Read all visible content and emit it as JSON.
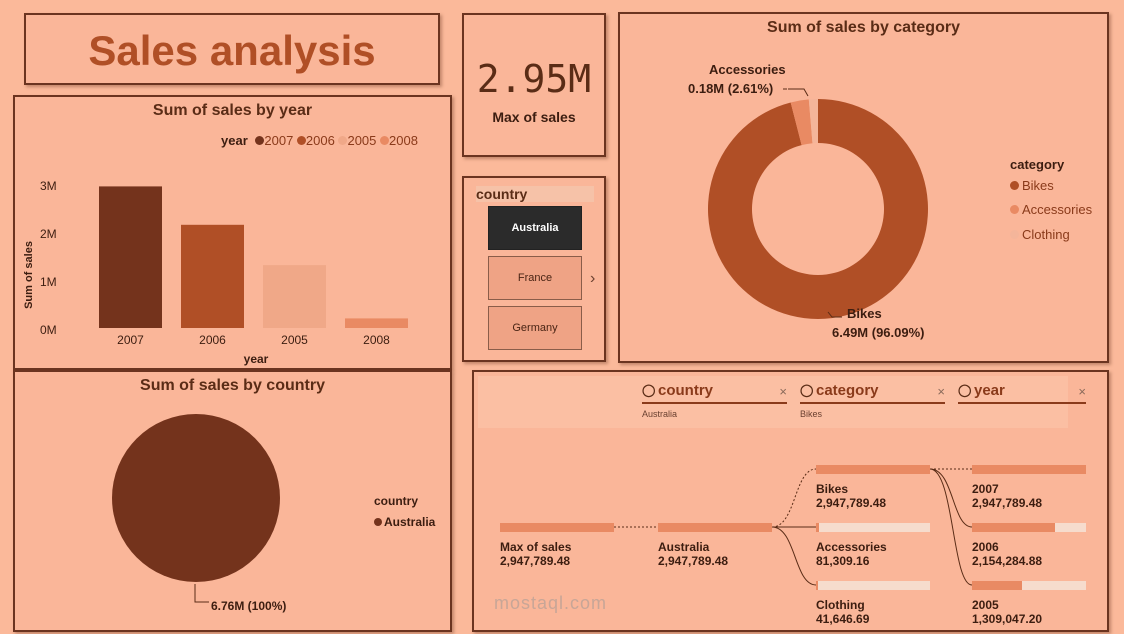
{
  "title": "Sales analysis",
  "kpi": {
    "value": "2.95M",
    "label": "Max of sales"
  },
  "year_chart": {
    "title": "Sum of sales by year",
    "legend_title": "year",
    "legend": [
      "2007",
      "2006",
      "2005",
      "2008"
    ],
    "ylabel": "Sum of sales",
    "xlabel": "year",
    "yticks": [
      "3M",
      "2M",
      "1M",
      "0M"
    ]
  },
  "category_chart": {
    "title": "Sum of sales by category",
    "legend_title": "category",
    "legend": [
      "Bikes",
      "Accessories",
      "Clothing"
    ],
    "label_accessories_name": "Accessories",
    "label_accessories_value": "0.18M (2.61%)",
    "label_bikes_name": "Bikes",
    "label_bikes_value": "6.49M (96.09%)"
  },
  "country_chart": {
    "title": "Sum of sales by country",
    "legend_title": "country",
    "legend": [
      "Australia"
    ],
    "label_value": "6.76M (100%)"
  },
  "slicer": {
    "title": "country",
    "items": [
      "Australia",
      "France",
      "Germany"
    ],
    "selected": "Australia"
  },
  "decomp": {
    "headers": [
      {
        "label": "country",
        "sub": "Australia"
      },
      {
        "label": "category",
        "sub": "Bikes"
      },
      {
        "label": "year",
        "sub": ""
      }
    ],
    "root": {
      "label": "Max of sales",
      "value": "2,947,789.48"
    },
    "level1": [
      {
        "label": "Australia",
        "value": "2,947,789.48"
      }
    ],
    "level2": [
      {
        "label": "Bikes",
        "value": "2,947,789.48"
      },
      {
        "label": "Accessories",
        "value": "81,309.16"
      },
      {
        "label": "Clothing",
        "value": "41,646.69"
      }
    ],
    "level3": [
      {
        "label": "2007",
        "value": "2,947,789.48"
      },
      {
        "label": "2006",
        "value": "2,154,284.88"
      },
      {
        "label": "2005",
        "value": "1,309,047.20"
      }
    ]
  },
  "watermark": "mostaql.com",
  "colors": {
    "background": "#fbb99a",
    "dark_brown": "#74331c",
    "rust": "#b04f26",
    "light_salmon": "#f0a888",
    "orange": "#e98a63",
    "pale": "#f6dccd"
  },
  "chart_data": [
    {
      "type": "bar",
      "title": "Sum of sales by year",
      "xlabel": "year",
      "ylabel": "Sum of sales",
      "categories": [
        "2007",
        "2006",
        "2005",
        "2008"
      ],
      "values": [
        2.95,
        2.15,
        1.31,
        0.2
      ],
      "unit": "M",
      "ylim": [
        0,
        3
      ],
      "colors": [
        "#74331c",
        "#b04f26",
        "#f0a888",
        "#e98a63"
      ],
      "legend": "top-right"
    },
    {
      "type": "pie",
      "title": "Sum of sales by category",
      "categories": [
        "Bikes",
        "Accessories",
        "Clothing"
      ],
      "values": [
        6.49,
        0.18,
        0.09
      ],
      "percent": [
        96.09,
        2.61,
        1.3
      ],
      "donut": true,
      "colors": [
        "#b04f26",
        "#e98a63",
        "#f4b59a"
      ],
      "legend": "right"
    },
    {
      "type": "pie",
      "title": "Sum of sales by country",
      "categories": [
        "Australia"
      ],
      "values": [
        6.76
      ],
      "percent": [
        100
      ],
      "colors": [
        "#74331c"
      ],
      "legend": "right"
    }
  ]
}
